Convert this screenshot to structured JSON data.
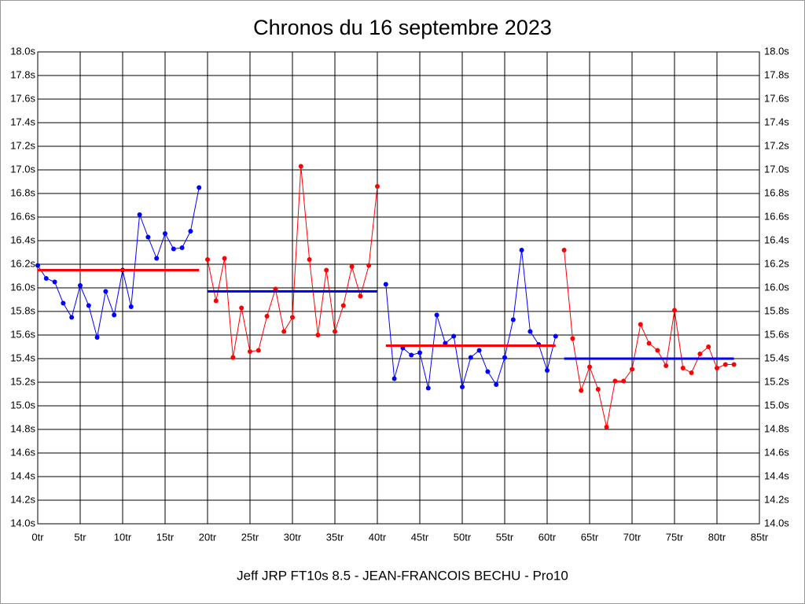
{
  "chart_data": {
    "type": "line",
    "title": "Chronos du 16 septembre 2023",
    "xlabel": "Jeff JRP FT10s 8.5 - JEAN-FRANCOIS BECHU - Pro10",
    "xlim": [
      0,
      85
    ],
    "ylim": [
      14.0,
      18.0
    ],
    "grid": true,
    "xticks": [
      {
        "value": 0,
        "label": "0tr"
      },
      {
        "value": 5,
        "label": "5tr"
      },
      {
        "value": 10,
        "label": "10tr"
      },
      {
        "value": 15,
        "label": "15tr"
      },
      {
        "value": 20,
        "label": "20tr"
      },
      {
        "value": 25,
        "label": "25tr"
      },
      {
        "value": 30,
        "label": "30tr"
      },
      {
        "value": 35,
        "label": "35tr"
      },
      {
        "value": 40,
        "label": "40tr"
      },
      {
        "value": 45,
        "label": "45tr"
      },
      {
        "value": 50,
        "label": "50tr"
      },
      {
        "value": 55,
        "label": "55tr"
      },
      {
        "value": 60,
        "label": "60tr"
      },
      {
        "value": 65,
        "label": "65tr"
      },
      {
        "value": 70,
        "label": "70tr"
      },
      {
        "value": 75,
        "label": "75tr"
      },
      {
        "value": 80,
        "label": "80tr"
      },
      {
        "value": 85,
        "label": "85tr"
      }
    ],
    "yticks": [
      {
        "value": 14.0,
        "label": "14.0s"
      },
      {
        "value": 14.2,
        "label": "14.2s"
      },
      {
        "value": 14.4,
        "label": "14.4s"
      },
      {
        "value": 14.6,
        "label": "14.6s"
      },
      {
        "value": 14.8,
        "label": "14.8s"
      },
      {
        "value": 15.0,
        "label": "15.0s"
      },
      {
        "value": 15.2,
        "label": "15.2s"
      },
      {
        "value": 15.4,
        "label": "15.4s"
      },
      {
        "value": 15.6,
        "label": "15.6s"
      },
      {
        "value": 15.8,
        "label": "15.8s"
      },
      {
        "value": 16.0,
        "label": "16.0s"
      },
      {
        "value": 16.2,
        "label": "16.2s"
      },
      {
        "value": 16.4,
        "label": "16.4s"
      },
      {
        "value": 16.6,
        "label": "16.6s"
      },
      {
        "value": 16.8,
        "label": "16.8s"
      },
      {
        "value": 17.0,
        "label": "17.0s"
      },
      {
        "value": 17.2,
        "label": "17.2s"
      },
      {
        "value": 17.4,
        "label": "17.4s"
      },
      {
        "value": 17.6,
        "label": "17.6s"
      },
      {
        "value": 17.8,
        "label": "17.8s"
      },
      {
        "value": 18.0,
        "label": "18.0s"
      }
    ],
    "series": [
      {
        "color": "#0000ff",
        "markers": true,
        "x": [
          0,
          1,
          2,
          3,
          4,
          5,
          6,
          7,
          8,
          9,
          10,
          11,
          12,
          13,
          14,
          15,
          16,
          17,
          18,
          19
        ],
        "values": [
          16.19,
          16.08,
          16.05,
          15.87,
          15.75,
          16.02,
          15.85,
          15.58,
          15.97,
          15.77,
          16.15,
          15.84,
          16.62,
          16.43,
          16.25,
          16.46,
          16.33,
          16.34,
          16.48,
          16.85
        ]
      },
      {
        "color": "#ff0000",
        "markers": false,
        "x": [
          0,
          19
        ],
        "values": [
          16.15,
          16.15
        ]
      },
      {
        "color": "#ff0000",
        "markers": true,
        "x": [
          20,
          21,
          22,
          23,
          24,
          25,
          26,
          27,
          28,
          29,
          30,
          31,
          32,
          33,
          34,
          35,
          36,
          37,
          38,
          39,
          40
        ],
        "values": [
          16.24,
          15.89,
          16.25,
          15.41,
          15.83,
          15.46,
          15.47,
          15.76,
          15.99,
          15.63,
          15.75,
          17.03,
          16.24,
          15.6,
          16.15,
          15.63,
          15.85,
          16.18,
          15.93,
          16.19,
          16.86
        ]
      },
      {
        "color": "#0000ff",
        "markers": false,
        "x": [
          20,
          40
        ],
        "values": [
          15.97,
          15.97
        ]
      },
      {
        "color": "#0000ff",
        "markers": true,
        "x": [
          41,
          42,
          43,
          44,
          45,
          46,
          47,
          48,
          49,
          50,
          51,
          52,
          53,
          54,
          55,
          56,
          57,
          58,
          59,
          60,
          61
        ],
        "values": [
          16.03,
          15.23,
          15.49,
          15.43,
          15.45,
          15.15,
          15.77,
          15.53,
          15.59,
          15.16,
          15.41,
          15.47,
          15.29,
          15.18,
          15.41,
          15.73,
          16.32,
          15.63,
          15.52,
          15.3,
          15.59
        ]
      },
      {
        "color": "#ff0000",
        "markers": false,
        "x": [
          41,
          61
        ],
        "values": [
          15.51,
          15.51
        ]
      },
      {
        "color": "#ff0000",
        "markers": true,
        "x": [
          62,
          63,
          64,
          65,
          66,
          67,
          68,
          69,
          70,
          71,
          72,
          73,
          74,
          75,
          76,
          77,
          78,
          79,
          80,
          81,
          82
        ],
        "values": [
          16.32,
          15.57,
          15.13,
          15.33,
          15.14,
          14.82,
          15.21,
          15.21,
          15.31,
          15.69,
          15.53,
          15.47,
          15.34,
          15.81,
          15.32,
          15.28,
          15.44,
          15.5,
          15.32,
          15.35,
          15.35
        ]
      },
      {
        "color": "#0000ff",
        "markers": false,
        "x": [
          62,
          82
        ],
        "values": [
          15.4,
          15.4
        ]
      }
    ]
  }
}
